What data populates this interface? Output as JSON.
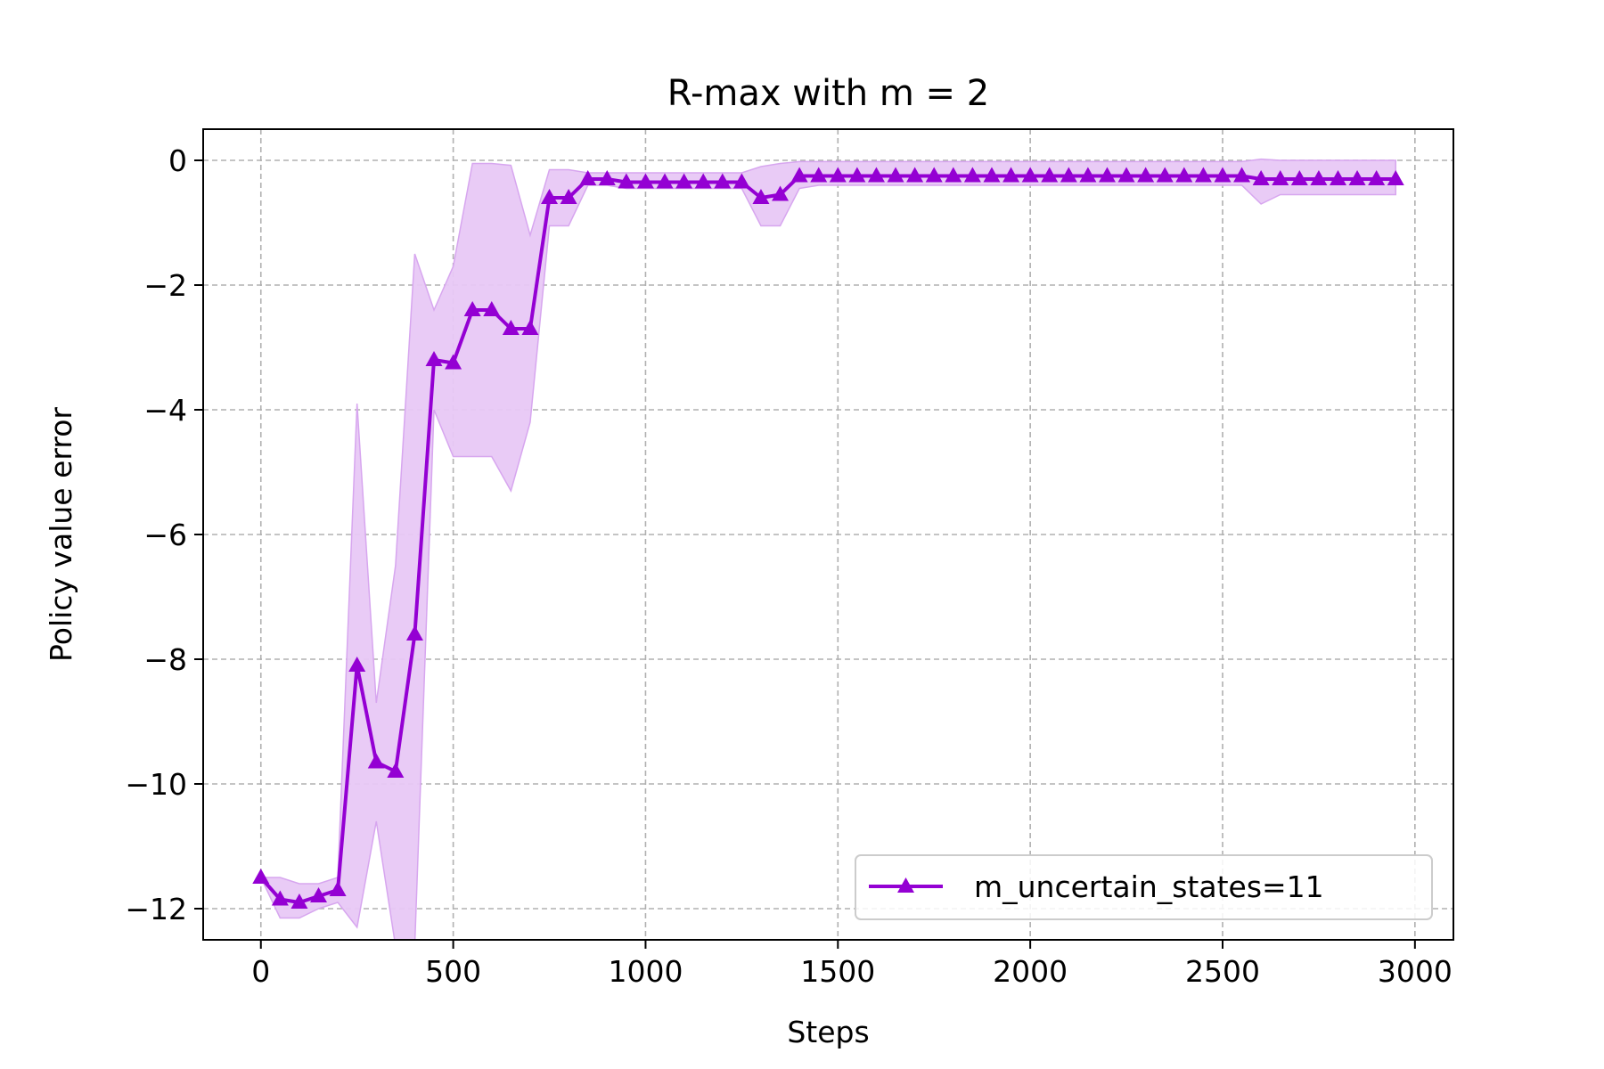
{
  "chart_data": {
    "type": "line",
    "title": "R-max with m = 2",
    "xlabel": "Steps",
    "ylabel": "Policy value error",
    "xlim": [
      -150,
      3100
    ],
    "ylim": [
      -12.5,
      0.5
    ],
    "xticks": [
      0,
      500,
      1000,
      1500,
      2000,
      2500,
      3000
    ],
    "yticks": [
      0,
      -2,
      -4,
      -6,
      -8,
      -10,
      -12
    ],
    "xtick_labels": [
      "0",
      "500",
      "1000",
      "1500",
      "2000",
      "2500",
      "3000"
    ],
    "ytick_labels": [
      "0",
      "−2",
      "−4",
      "−6",
      "−8",
      "−10",
      "−12"
    ],
    "grid": true,
    "legend_position": "lower-right",
    "colors": {
      "line": "#9400d3",
      "band": "#e8c8f5",
      "band_edge": "#d7a6ef"
    },
    "series": [
      {
        "name": "m_uncertain_states=11",
        "marker": "triangle",
        "x": [
          0,
          50,
          100,
          150,
          200,
          250,
          300,
          350,
          400,
          450,
          500,
          550,
          600,
          650,
          700,
          750,
          800,
          850,
          900,
          950,
          1000,
          1050,
          1100,
          1150,
          1200,
          1250,
          1300,
          1350,
          1400,
          1450,
          1500,
          1550,
          1600,
          1650,
          1700,
          1750,
          1800,
          1850,
          1900,
          1950,
          2000,
          2050,
          2100,
          2150,
          2200,
          2250,
          2300,
          2350,
          2400,
          2450,
          2500,
          2550,
          2600,
          2650,
          2700,
          2750,
          2800,
          2850,
          2900,
          2950
        ],
        "y": [
          -11.5,
          -11.85,
          -11.9,
          -11.8,
          -11.7,
          -8.1,
          -9.65,
          -9.8,
          -7.6,
          -3.2,
          -3.25,
          -2.4,
          -2.4,
          -2.7,
          -2.7,
          -0.6,
          -0.6,
          -0.3,
          -0.3,
          -0.35,
          -0.35,
          -0.35,
          -0.35,
          -0.35,
          -0.35,
          -0.35,
          -0.6,
          -0.55,
          -0.25,
          -0.25,
          -0.25,
          -0.25,
          -0.25,
          -0.25,
          -0.25,
          -0.25,
          -0.25,
          -0.25,
          -0.25,
          -0.25,
          -0.25,
          -0.25,
          -0.25,
          -0.25,
          -0.25,
          -0.25,
          -0.25,
          -0.25,
          -0.25,
          -0.25,
          -0.25,
          -0.25,
          -0.3,
          -0.3,
          -0.3,
          -0.3,
          -0.3,
          -0.3,
          -0.3,
          -0.3
        ],
        "upper": [
          -11.5,
          -11.5,
          -11.6,
          -11.6,
          -11.5,
          -3.9,
          -8.7,
          -6.5,
          -1.5,
          -2.4,
          -1.7,
          -0.05,
          -0.05,
          -0.08,
          -1.2,
          -0.15,
          -0.15,
          -0.2,
          -0.2,
          -0.2,
          -0.2,
          -0.2,
          -0.2,
          -0.2,
          -0.2,
          -0.2,
          -0.1,
          -0.05,
          -0.02,
          -0.02,
          -0.02,
          -0.02,
          -0.02,
          -0.02,
          -0.02,
          -0.02,
          -0.02,
          -0.02,
          -0.02,
          -0.02,
          -0.02,
          -0.02,
          -0.02,
          -0.02,
          -0.02,
          -0.02,
          -0.02,
          -0.02,
          -0.02,
          -0.02,
          -0.02,
          -0.02,
          0.02,
          0.0,
          0.0,
          0.0,
          0.0,
          0.0,
          0.0,
          0.0
        ],
        "lower": [
          -11.5,
          -12.15,
          -12.15,
          -12.0,
          -11.9,
          -12.3,
          -10.6,
          -12.6,
          -12.6,
          -4.0,
          -4.75,
          -4.75,
          -4.75,
          -5.3,
          -4.2,
          -1.05,
          -1.05,
          -0.4,
          -0.4,
          -0.45,
          -0.45,
          -0.45,
          -0.45,
          -0.45,
          -0.45,
          -0.45,
          -1.05,
          -1.05,
          -0.45,
          -0.4,
          -0.4,
          -0.4,
          -0.4,
          -0.4,
          -0.4,
          -0.4,
          -0.4,
          -0.4,
          -0.4,
          -0.4,
          -0.4,
          -0.4,
          -0.4,
          -0.4,
          -0.4,
          -0.4,
          -0.4,
          -0.4,
          -0.4,
          -0.4,
          -0.4,
          -0.4,
          -0.7,
          -0.55,
          -0.55,
          -0.55,
          -0.55,
          -0.55,
          -0.55,
          -0.55
        ]
      }
    ]
  }
}
